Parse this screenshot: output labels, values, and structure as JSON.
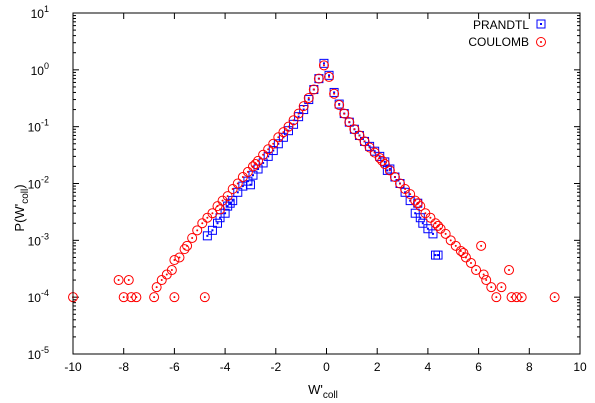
{
  "chart_data": {
    "type": "scatter",
    "title": "",
    "xlabel": "W'",
    "xlabel_sub": "coll",
    "ylabel": "P(W'",
    "ylabel_sub": "coll",
    "ylabel_close": ")",
    "xlim": [
      -10,
      10
    ],
    "ylim": [
      1e-05,
      10
    ],
    "yscale": "log",
    "x_ticks": [
      -10,
      -8,
      -6,
      -4,
      -2,
      0,
      2,
      4,
      6,
      8,
      10
    ],
    "x_tick_labels": [
      "-10",
      "-8",
      "-6",
      "-4",
      "-2",
      "0",
      "2",
      "4",
      "6",
      "8",
      "10"
    ],
    "y_ticks": [
      {
        "value": 1e-05,
        "base": "10",
        "exp": "-5"
      },
      {
        "value": 0.0001,
        "base": "10",
        "exp": "-4"
      },
      {
        "value": 0.001,
        "base": "10",
        "exp": "-3"
      },
      {
        "value": 0.01,
        "base": "10",
        "exp": "-2"
      },
      {
        "value": 0.1,
        "base": "10",
        "exp": "-1"
      },
      {
        "value": 1,
        "base": "10",
        "exp": "0"
      },
      {
        "value": 10,
        "base": "10",
        "exp": "1"
      }
    ],
    "grid": false,
    "legend_position": "top-right",
    "series": [
      {
        "name": "PRANDTL",
        "marker": "square",
        "color": "#0000ff",
        "points": [
          [
            -4.7,
            0.0012
          ],
          [
            -4.5,
            0.0015
          ],
          [
            -4.3,
            0.002
          ],
          [
            -4.2,
            0.0025
          ],
          [
            -4.0,
            0.003
          ],
          [
            -3.9,
            0.004
          ],
          [
            -3.7,
            0.005
          ],
          [
            -3.5,
            0.007
          ],
          [
            -3.3,
            0.009
          ],
          [
            -3.1,
            0.011
          ],
          [
            -2.9,
            0.014
          ],
          [
            -2.7,
            0.018
          ],
          [
            -2.5,
            0.023
          ],
          [
            -2.3,
            0.03
          ],
          [
            -2.1,
            0.038
          ],
          [
            -1.9,
            0.05
          ],
          [
            -1.7,
            0.065
          ],
          [
            -1.5,
            0.085
          ],
          [
            -1.3,
            0.11
          ],
          [
            -1.1,
            0.15
          ],
          [
            -0.9,
            0.2
          ],
          [
            -0.7,
            0.3
          ],
          [
            -0.5,
            0.45
          ],
          [
            -0.3,
            0.7
          ],
          [
            -0.1,
            1.3
          ],
          [
            0.1,
            0.8
          ],
          [
            0.3,
            0.4
          ],
          [
            0.5,
            0.25
          ],
          [
            0.7,
            0.17
          ],
          [
            0.9,
            0.12
          ],
          [
            1.1,
            0.09
          ],
          [
            1.3,
            0.07
          ],
          [
            1.5,
            0.055
          ],
          [
            1.7,
            0.045
          ],
          [
            1.9,
            0.037
          ],
          [
            2.1,
            0.03
          ],
          [
            2.3,
            0.024
          ],
          [
            2.5,
            0.018
          ],
          [
            2.7,
            0.013
          ],
          [
            2.9,
            0.01
          ],
          [
            3.1,
            0.007
          ],
          [
            3.3,
            0.005
          ],
          [
            3.5,
            0.003
          ],
          [
            3.7,
            0.0025
          ],
          [
            3.8,
            0.002
          ],
          [
            4.0,
            0.0016
          ],
          [
            4.2,
            0.0013
          ],
          [
            4.3,
            0.00055
          ],
          [
            4.4,
            0.00055
          ],
          [
            -3.0,
            0.0095
          ],
          [
            -3.8,
            0.0045
          ],
          [
            2.4,
            0.017
          ],
          [
            3.6,
            0.0045
          ]
        ]
      },
      {
        "name": "COULOMB",
        "marker": "circle",
        "color": "#ff0000",
        "points": [
          [
            -10.0,
            0.0001
          ],
          [
            -8.2,
            0.0002
          ],
          [
            -8.0,
            0.0001
          ],
          [
            -7.8,
            0.0002
          ],
          [
            -7.7,
            0.0001
          ],
          [
            -7.5,
            0.0001
          ],
          [
            -6.8,
            0.0001
          ],
          [
            -6.7,
            0.00015
          ],
          [
            -6.5,
            0.0002
          ],
          [
            -6.3,
            0.00025
          ],
          [
            -6.1,
            0.0003
          ],
          [
            -6.0,
            0.00045
          ],
          [
            -5.8,
            0.0005
          ],
          [
            -5.6,
            0.0007
          ],
          [
            -5.5,
            0.0008
          ],
          [
            -5.3,
            0.0011
          ],
          [
            -5.1,
            0.0015
          ],
          [
            -4.9,
            0.002
          ],
          [
            -4.8,
            0.0001
          ],
          [
            -4.7,
            0.0025
          ],
          [
            -4.5,
            0.003
          ],
          [
            -4.3,
            0.004
          ],
          [
            -4.1,
            0.005
          ],
          [
            -3.9,
            0.006
          ],
          [
            -3.7,
            0.008
          ],
          [
            -3.5,
            0.01
          ],
          [
            -3.3,
            0.013
          ],
          [
            -3.1,
            0.016
          ],
          [
            -2.9,
            0.02
          ],
          [
            -2.7,
            0.025
          ],
          [
            -2.5,
            0.032
          ],
          [
            -2.3,
            0.04
          ],
          [
            -2.1,
            0.05
          ],
          [
            -1.9,
            0.065
          ],
          [
            -1.7,
            0.08
          ],
          [
            -1.5,
            0.1
          ],
          [
            -1.3,
            0.13
          ],
          [
            -1.1,
            0.17
          ],
          [
            -0.9,
            0.23
          ],
          [
            -0.7,
            0.32
          ],
          [
            -0.5,
            0.45
          ],
          [
            -0.3,
            0.7
          ],
          [
            -0.1,
            1.2
          ],
          [
            0.1,
            0.75
          ],
          [
            0.3,
            0.38
          ],
          [
            0.5,
            0.24
          ],
          [
            0.7,
            0.17
          ],
          [
            0.9,
            0.12
          ],
          [
            1.1,
            0.09
          ],
          [
            1.3,
            0.07
          ],
          [
            1.5,
            0.055
          ],
          [
            1.7,
            0.043
          ],
          [
            1.9,
            0.035
          ],
          [
            2.1,
            0.028
          ],
          [
            2.3,
            0.022
          ],
          [
            2.5,
            0.017
          ],
          [
            2.7,
            0.013
          ],
          [
            2.9,
            0.01
          ],
          [
            3.1,
            0.008
          ],
          [
            3.3,
            0.0065
          ],
          [
            3.5,
            0.005
          ],
          [
            3.7,
            0.004
          ],
          [
            3.9,
            0.003
          ],
          [
            4.1,
            0.0025
          ],
          [
            4.3,
            0.002
          ],
          [
            4.5,
            0.0016
          ],
          [
            4.7,
            0.0013
          ],
          [
            4.9,
            0.001
          ],
          [
            5.1,
            0.0008
          ],
          [
            5.3,
            0.00065
          ],
          [
            5.5,
            0.0005
          ],
          [
            5.7,
            0.0004
          ],
          [
            5.9,
            0.0003
          ],
          [
            6.1,
            0.0008
          ],
          [
            6.2,
            0.00025
          ],
          [
            6.3,
            0.0002
          ],
          [
            6.5,
            0.00015
          ],
          [
            6.7,
            0.0001
          ],
          [
            6.9,
            0.00015
          ],
          [
            7.2,
            0.0003
          ],
          [
            7.3,
            0.0001
          ],
          [
            7.5,
            0.0001
          ],
          [
            7.7,
            0.0001
          ],
          [
            9.0,
            0.0001
          ],
          [
            -6.0,
            0.0001
          ],
          [
            -4.2,
            0.0035
          ],
          [
            -2.8,
            0.022
          ],
          [
            2.2,
            0.025
          ],
          [
            3.6,
            0.0045
          ],
          [
            4.4,
            0.0018
          ],
          [
            5.4,
            0.0006
          ]
        ]
      }
    ]
  }
}
